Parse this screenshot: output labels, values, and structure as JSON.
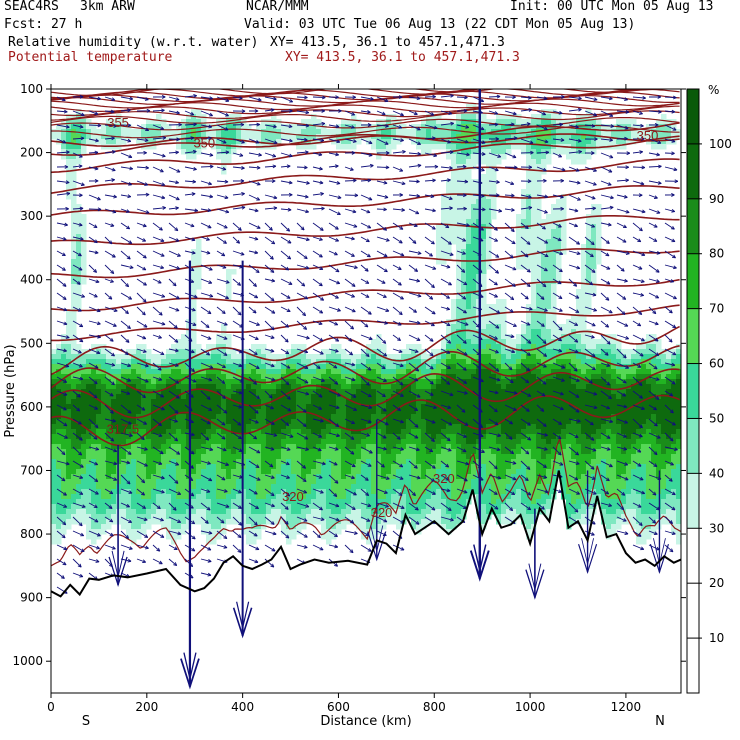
{
  "header": {
    "project": "SEAC4RS",
    "model": "3km ARW",
    "org": "NCAR/MMM",
    "init": "Init: 00 UTC Mon 05 Aug 13",
    "fcst_label": "Fcst:",
    "fcst_value": "27 h",
    "valid": "Valid: 03 UTC Tue 06 Aug 13 (22 CDT Mon 05 Aug 13)",
    "field1": "Relative humidity (w.r.t. water)",
    "field1_xy": "XY= 413.5, 36.1 to 457.1,471.3",
    "field2": "Potential temperature",
    "field2_xy": "XY= 413.5, 36.1 to 457.1,471.3"
  },
  "chart_data": {
    "type": "heatmap",
    "xlabel": "Distance (km)",
    "ylabel": "Pressure (hPa)",
    "x_range": [
      0,
      1315
    ],
    "y_range": [
      100,
      1050
    ],
    "x_ticks": [
      0,
      200,
      400,
      600,
      800,
      1000,
      1200
    ],
    "y_ticks": [
      100,
      200,
      300,
      400,
      500,
      600,
      700,
      800,
      900,
      1000
    ],
    "x_end_labels": {
      "left": "S",
      "right": "N"
    },
    "colorbar": {
      "unit": "%",
      "levels": [
        10,
        20,
        30,
        40,
        50,
        60,
        70,
        80,
        90,
        100
      ],
      "colors": [
        "#ffffff",
        "#ffffff",
        "#ffffff",
        "#c8f5e6",
        "#7fe8c0",
        "#3ad89a",
        "#55d855",
        "#22b422",
        "#1a8c1a",
        "#0e6a0e",
        "#0a5a0a"
      ]
    },
    "rh_levels": [
      {
        "min": 30,
        "color": "#c8f5e6"
      },
      {
        "min": 40,
        "color": "#7fe8c0"
      },
      {
        "min": 50,
        "color": "#3ad89a"
      },
      {
        "min": 60,
        "color": "#55d855"
      },
      {
        "min": 70,
        "color": "#22b422"
      },
      {
        "min": 80,
        "color": "#1a8c1a"
      },
      {
        "min": 90,
        "color": "#0e6a0e"
      }
    ],
    "theta_contour_labels": [
      {
        "text": "355",
        "x": 140,
        "p": 160
      },
      {
        "text": "350",
        "x": 320,
        "p": 192
      },
      {
        "text": "350",
        "x": 1245,
        "p": 180
      },
      {
        "text": "317.5",
        "x": 150,
        "p": 642
      },
      {
        "text": "320",
        "x": 505,
        "p": 748
      },
      {
        "text": "320",
        "x": 690,
        "p": 773
      },
      {
        "text": "320",
        "x": 820,
        "p": 720
      }
    ],
    "terrain": {
      "x": [
        0,
        20,
        40,
        60,
        80,
        100,
        130,
        160,
        200,
        240,
        270,
        300,
        320,
        340,
        360,
        380,
        400,
        420,
        440,
        460,
        480,
        500,
        520,
        550,
        580,
        620,
        660,
        680,
        700,
        720,
        740,
        760,
        780,
        800,
        830,
        860,
        880,
        900,
        920,
        940,
        960,
        980,
        1000,
        1020,
        1040,
        1060,
        1080,
        1100,
        1120,
        1140,
        1160,
        1180,
        1200,
        1220,
        1240,
        1260,
        1280,
        1300,
        1315
      ],
      "p": [
        890,
        898,
        880,
        895,
        870,
        872,
        865,
        868,
        862,
        855,
        880,
        890,
        885,
        870,
        845,
        835,
        850,
        855,
        848,
        840,
        820,
        855,
        848,
        840,
        845,
        842,
        848,
        810,
        815,
        830,
        770,
        800,
        790,
        780,
        800,
        780,
        730,
        800,
        760,
        790,
        785,
        770,
        815,
        760,
        780,
        700,
        790,
        780,
        810,
        740,
        805,
        800,
        830,
        845,
        840,
        850,
        835,
        845,
        840
      ]
    }
  }
}
